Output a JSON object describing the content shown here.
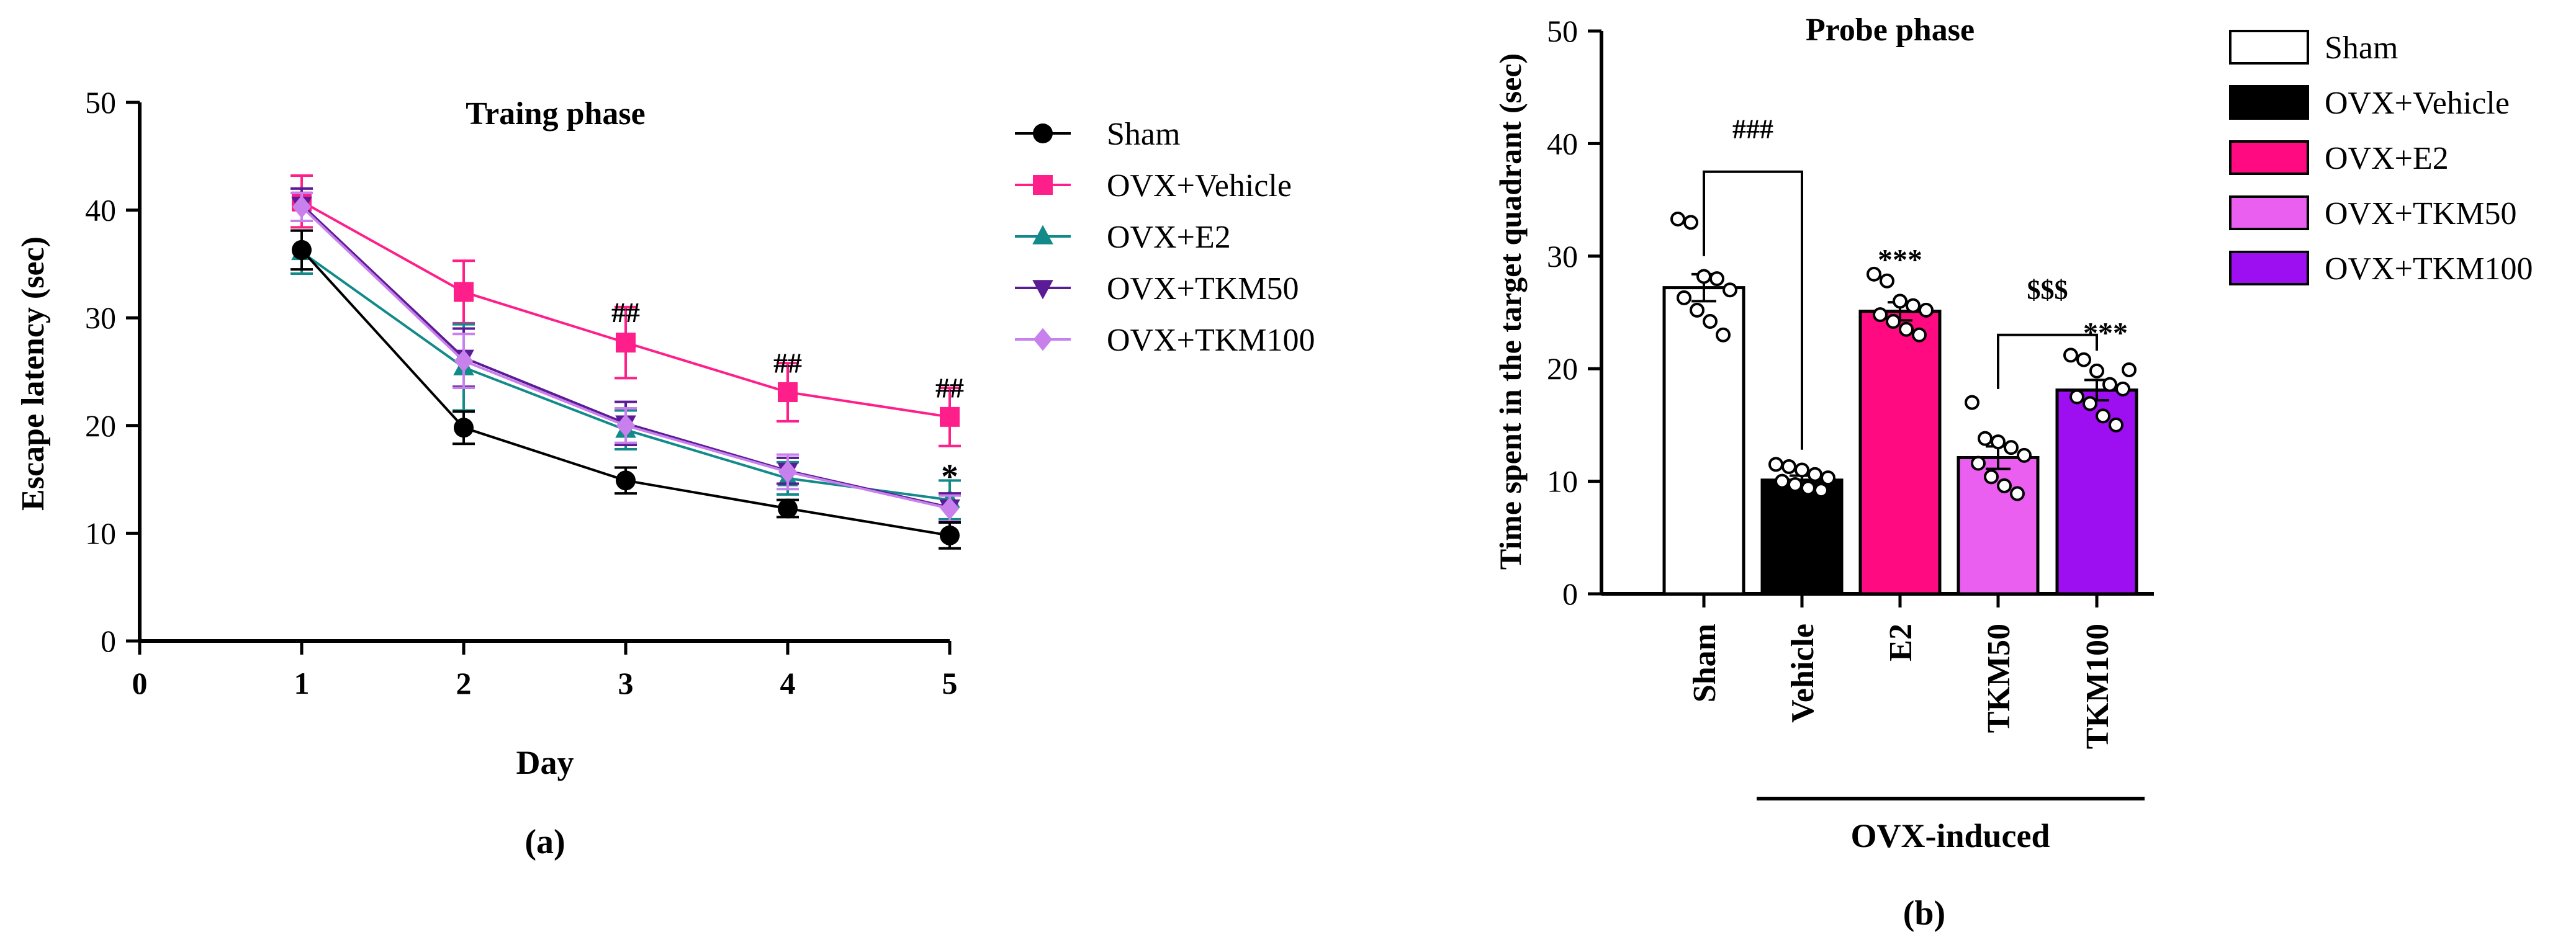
{
  "chart_data": [
    {
      "panel": "(a)",
      "type": "line",
      "title": "Traing phase",
      "xlabel": "Day",
      "ylabel": "Escape latency (sec)",
      "xlim": [
        0,
        5
      ],
      "ylim": [
        0,
        50
      ],
      "xticks": [
        "0",
        "1",
        "2",
        "3",
        "4",
        "5"
      ],
      "yticks": [
        "0",
        "10",
        "20",
        "30",
        "40",
        "50"
      ],
      "x": [
        1,
        2,
        3,
        4,
        5
      ],
      "series": [
        {
          "name": "Sham",
          "color": "#000000",
          "marker": "circle",
          "values": [
            36.3,
            19.8,
            14.9,
            12.3,
            9.8
          ],
          "errors": [
            1.8,
            1.5,
            1.2,
            0.8,
            1.2
          ]
        },
        {
          "name": "OVX+Vehicle",
          "color": "#ff1f8a",
          "marker": "square",
          "values": [
            40.8,
            32.4,
            27.7,
            23.1,
            20.8
          ],
          "errors": [
            2.4,
            2.9,
            3.3,
            2.7,
            2.7
          ]
        },
        {
          "name": "OVX+E2",
          "color": "#128a8a",
          "marker": "triangle-up",
          "values": [
            36.1,
            25.4,
            19.6,
            15.1,
            13.1
          ],
          "errors": [
            2.0,
            4.0,
            1.8,
            1.5,
            1.8
          ]
        },
        {
          "name": "OVX+TKM50",
          "color": "#5b1a96",
          "marker": "triangle-down",
          "values": [
            40.5,
            26.3,
            20.2,
            15.8,
            12.4
          ],
          "errors": [
            1.5,
            2.7,
            2.0,
            1.2,
            1.3
          ]
        },
        {
          "name": "OVX+TKM100",
          "color": "#c880ec",
          "marker": "diamond",
          "values": [
            40.3,
            26.0,
            20.0,
            15.7,
            12.3
          ],
          "errors": [
            1.3,
            2.5,
            1.6,
            1.6,
            1.2
          ]
        }
      ],
      "annotations": [
        {
          "x": 3,
          "y": 29.6,
          "text": "##"
        },
        {
          "x": 4,
          "y": 24.9,
          "text": "##"
        },
        {
          "x": 5,
          "y": 22.6,
          "text": "##"
        },
        {
          "x": 5,
          "y": 14.2,
          "text": "*"
        }
      ],
      "legend": [
        "Sham",
        "OVX+Vehicle",
        "OVX+E2",
        "OVX+TKM50",
        "OVX+TKM100"
      ],
      "legend_position": "right"
    },
    {
      "panel": "(b)",
      "type": "bar",
      "title": "Probe phase",
      "ylabel": "Time spent in the target quadrant (sec)",
      "ylim": [
        0,
        50
      ],
      "yticks": [
        "0",
        "10",
        "20",
        "30",
        "40",
        "50"
      ],
      "categories": [
        "Sham",
        "Vehicle",
        "E2",
        "TKM50",
        "TKM100"
      ],
      "group_label": "OVX-induced",
      "values": [
        27.2,
        10.1,
        25.1,
        12.1,
        18.1
      ],
      "errors": [
        1.2,
        0.4,
        0.8,
        1.0,
        0.9
      ],
      "colors": [
        "#ffffff",
        "#000000",
        "#ff0a80",
        "#eb5ff0",
        "#9d0ef0"
      ],
      "points": [
        [
          33.3,
          33.0,
          28.2,
          28.0,
          27.0,
          26.3,
          25.2,
          24.2,
          23.0
        ],
        [
          11.5,
          11.3,
          11.0,
          10.6,
          10.3,
          10.0,
          9.7,
          9.4,
          9.2
        ],
        [
          28.4,
          27.8,
          26.0,
          25.6,
          25.2,
          24.8,
          24.2,
          23.5,
          23.0
        ],
        [
          17.0,
          13.8,
          13.5,
          13.0,
          12.3,
          11.6,
          10.4,
          9.6,
          8.9
        ],
        [
          21.2,
          20.8,
          19.8,
          18.6,
          18.2,
          17.5,
          16.9,
          15.8,
          15.0,
          19.9
        ]
      ],
      "annotations": [
        {
          "text": "###",
          "between": [
            "Sham",
            "Vehicle"
          ],
          "y": 40.5
        },
        {
          "text": "***",
          "over": "E2",
          "y": 28.8
        },
        {
          "text": "$$$",
          "between": [
            "TKM50",
            "TKM100"
          ],
          "y": 26.2
        },
        {
          "text": "***",
          "over": "TKM100",
          "y": 22.3
        }
      ],
      "legend": [
        "Sham",
        "OVX+Vehicle",
        "OVX+E2",
        "OVX+TKM50",
        "OVX+TKM100"
      ],
      "legend_position": "right"
    }
  ]
}
